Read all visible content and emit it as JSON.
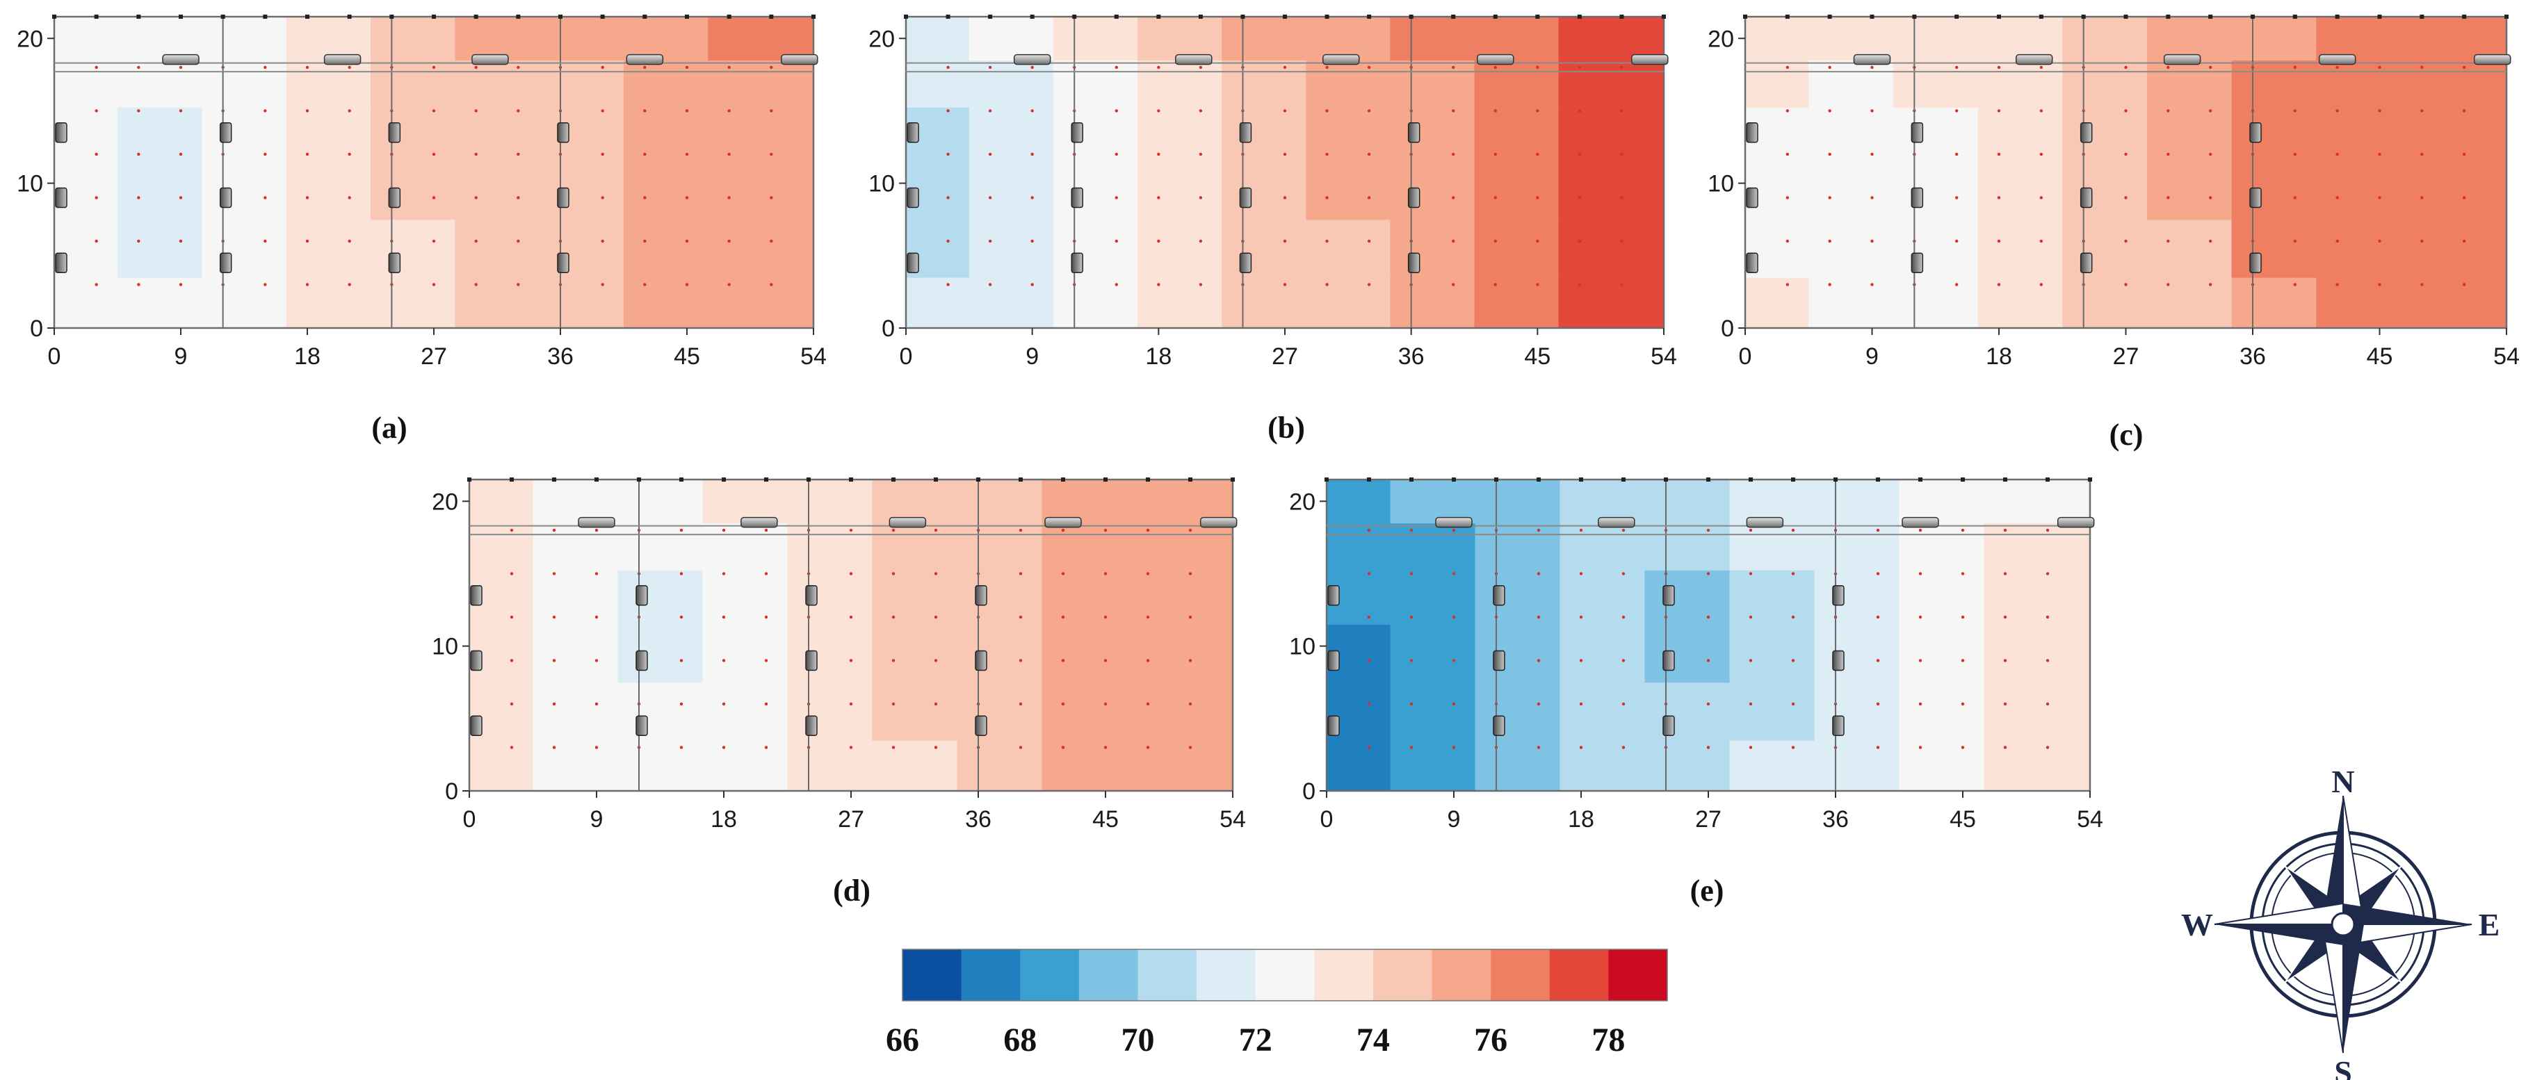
{
  "figure": {
    "colorbar": {
      "labels": [
        "66",
        "68",
        "70",
        "72",
        "74",
        "76",
        "78"
      ],
      "colors": [
        "#0b4fa0",
        "#1f7fbf",
        "#3aa0d2",
        "#7ec3e3",
        "#b4dcee",
        "#dcedf6",
        "#f6f6f6",
        "#fbe3d8",
        "#f9c8b4",
        "#f5a88b",
        "#ef7f62",
        "#e3473a",
        "#cc0a22"
      ],
      "min": 66,
      "max": 79,
      "step": 1
    },
    "compass": {
      "north": "N",
      "south": "S",
      "east": "E",
      "west": "W"
    }
  },
  "chart_data": [
    {
      "type": "heatmap",
      "caption": "(a)",
      "x_ticks": [
        "0",
        "9",
        "18",
        "27",
        "36",
        "45",
        "54"
      ],
      "y_ticks": [
        "0",
        "10",
        "20"
      ],
      "xlim": [
        0,
        54
      ],
      "ylim": [
        0,
        21.5
      ],
      "x_centers": [
        1.5,
        7.5,
        13.5,
        19.5,
        25.5,
        31.5,
        37.5,
        43.5,
        49.5
      ],
      "y_centers": [
        1.5,
        5.5,
        9.5,
        13.5,
        17,
        20
      ],
      "values": [
        [
          72,
          72,
          72.5,
          73,
          73.5,
          74,
          74.5,
          75,
          75.5
        ],
        [
          72,
          71.5,
          72,
          73,
          73.5,
          74,
          74.5,
          75,
          75.5
        ],
        [
          72,
          71.5,
          72,
          73,
          74,
          74,
          74.5,
          75,
          75.5
        ],
        [
          72,
          71.5,
          72,
          73,
          74,
          74,
          74.5,
          75,
          75.5
        ],
        [
          72,
          72,
          72,
          73,
          74,
          74.5,
          74.5,
          75,
          75.5
        ],
        [
          72,
          72,
          72.5,
          73,
          74,
          75,
          75,
          75.5,
          76
        ]
      ]
    },
    {
      "type": "heatmap",
      "caption": "(b)",
      "x_ticks": [
        "0",
        "9",
        "18",
        "27",
        "36",
        "45",
        "54"
      ],
      "y_ticks": [
        "0",
        "10",
        "20"
      ],
      "xlim": [
        0,
        54
      ],
      "ylim": [
        0,
        21.5
      ],
      "x_centers": [
        1.5,
        7.5,
        13.5,
        19.5,
        25.5,
        31.5,
        37.5,
        43.5,
        49.5
      ],
      "y_centers": [
        1.5,
        5.5,
        9.5,
        13.5,
        17,
        20
      ],
      "values": [
        [
          71,
          71.5,
          72,
          73,
          74,
          74.5,
          75,
          76,
          77.5
        ],
        [
          70.5,
          71,
          72,
          73,
          74,
          74.5,
          75.5,
          76,
          77.5
        ],
        [
          70.5,
          71,
          72.5,
          73.5,
          74,
          75,
          75.5,
          76.5,
          77.5
        ],
        [
          70.5,
          71,
          72.5,
          73.5,
          74.5,
          75,
          75.5,
          76.5,
          77.5
        ],
        [
          71,
          71.5,
          72.5,
          73.5,
          74.5,
          75,
          75.5,
          76.5,
          77
        ],
        [
          71,
          72,
          73,
          74,
          75,
          75.5,
          76,
          76.5,
          77
        ]
      ]
    },
    {
      "type": "heatmap",
      "caption": "(c)",
      "x_ticks": [
        "0",
        "9",
        "18",
        "27",
        "36",
        "45",
        "54"
      ],
      "y_ticks": [
        "0",
        "10",
        "20"
      ],
      "xlim": [
        0,
        54
      ],
      "ylim": [
        0,
        21.5
      ],
      "x_centers": [
        1.5,
        7.5,
        13.5,
        19.5,
        25.5,
        31.5,
        37.5,
        43.5,
        49.5
      ],
      "y_centers": [
        1.5,
        5.5,
        9.5,
        13.5,
        17,
        20
      ],
      "values": [
        [
          73,
          72.5,
          72.5,
          73,
          74,
          74,
          75.5,
          76,
          76.5
        ],
        [
          72.5,
          72,
          72.5,
          73.5,
          74,
          74,
          76,
          76,
          76.5
        ],
        [
          72.5,
          72,
          72.5,
          73.5,
          74.5,
          75,
          76,
          76.5,
          76
        ],
        [
          72.5,
          72,
          72.5,
          73.5,
          74.5,
          75,
          76,
          76.5,
          76
        ],
        [
          73,
          72.5,
          73,
          73.5,
          74.5,
          75,
          76,
          76,
          76.5
        ],
        [
          73,
          73,
          73,
          73.5,
          74.5,
          75,
          75.5,
          76,
          76
        ]
      ]
    },
    {
      "type": "heatmap",
      "caption": "(d)",
      "x_ticks": [
        "0",
        "9",
        "18",
        "27",
        "36",
        "45",
        "54"
      ],
      "y_ticks": [
        "0",
        "10",
        "20"
      ],
      "xlim": [
        0,
        54
      ],
      "ylim": [
        0,
        21.5
      ],
      "x_centers": [
        1.5,
        7.5,
        13.5,
        19.5,
        25.5,
        31.5,
        37.5,
        43.5,
        49.5
      ],
      "y_centers": [
        1.5,
        5.5,
        9.5,
        13.5,
        17,
        20
      ],
      "values": [
        [
          73,
          72.5,
          72.5,
          72.5,
          73,
          73.5,
          74.5,
          75,
          75.5
        ],
        [
          73,
          72.5,
          72,
          72.5,
          73,
          74,
          74.5,
          75,
          75.5
        ],
        [
          73,
          72.5,
          71.5,
          72.5,
          73,
          74,
          74.5,
          75.5,
          75.5
        ],
        [
          73,
          72.5,
          71.5,
          72.5,
          73,
          74,
          74.5,
          75,
          75
        ],
        [
          73,
          72.5,
          72,
          72.5,
          73,
          74,
          74.5,
          75,
          75
        ],
        [
          73,
          72.5,
          72.5,
          73,
          73.5,
          74,
          74.5,
          75,
          75
        ]
      ]
    },
    {
      "type": "heatmap",
      "caption": "(e)",
      "x_ticks": [
        "0",
        "9",
        "18",
        "27",
        "36",
        "45",
        "54"
      ],
      "y_ticks": [
        "0",
        "10",
        "20"
      ],
      "xlim": [
        0,
        54
      ],
      "ylim": [
        0,
        21.5
      ],
      "x_centers": [
        1.5,
        7.5,
        13.5,
        19.5,
        25.5,
        31.5,
        37.5,
        43.5,
        49.5
      ],
      "y_centers": [
        1.5,
        5.5,
        9.5,
        13.5,
        17,
        20
      ],
      "values": [
        [
          67.5,
          68.5,
          69.5,
          70,
          70.5,
          71,
          71.5,
          72.5,
          73.5
        ],
        [
          67.5,
          68.5,
          69,
          70,
          70,
          70.5,
          71,
          72.5,
          73
        ],
        [
          67.5,
          68.5,
          69.5,
          70,
          69.5,
          70.5,
          71,
          72.5,
          73.5
        ],
        [
          68,
          68.5,
          69.5,
          70,
          69.5,
          70.5,
          71.5,
          72.5,
          73
        ],
        [
          68,
          68.5,
          69.5,
          70,
          70.5,
          71,
          71.5,
          72.5,
          73
        ],
        [
          68.5,
          69,
          69.5,
          70,
          70.5,
          71,
          71.5,
          72,
          72
        ]
      ]
    }
  ]
}
